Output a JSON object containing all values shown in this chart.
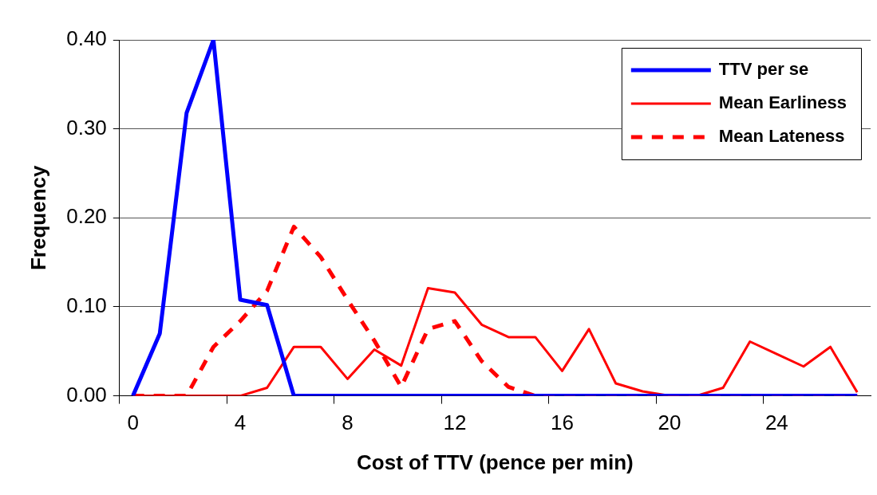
{
  "chart_data": {
    "type": "line",
    "xlabel": "Cost of TTV (pence per min)",
    "ylabel": "Frequency",
    "categories": [
      "0",
      null,
      null,
      null,
      "4",
      null,
      null,
      null,
      "8",
      null,
      null,
      null,
      "12",
      null,
      null,
      null,
      "16",
      null,
      null,
      null,
      "20",
      null,
      null,
      null,
      "24",
      null,
      null,
      null
    ],
    "ylim": [
      0,
      0.4
    ],
    "yticks": [
      {
        "value": 0,
        "label": "0.00"
      },
      {
        "value": 0.1,
        "label": "0.10"
      },
      {
        "value": 0.2,
        "label": "0.20"
      },
      {
        "value": 0.3,
        "label": "0.30"
      },
      {
        "value": 0.4,
        "label": "0.40"
      }
    ],
    "grid": "y",
    "legend": "top right",
    "marker": "none",
    "series": [
      {
        "name": "TTV per se",
        "color": "#0000ff",
        "line_style": "solid",
        "values": [
          0,
          0.07,
          0.318,
          0.4,
          0.108,
          0.102,
          0,
          0,
          0,
          0,
          0,
          0,
          0,
          0,
          0,
          0,
          0,
          0,
          0,
          0,
          0,
          0,
          0,
          0,
          0,
          0,
          0,
          0
        ]
      },
      {
        "name": "Mean Earliness",
        "color": "#ff0000",
        "line_style": "solid",
        "values": [
          0,
          0,
          0,
          0,
          0,
          0.009,
          0.055,
          0.055,
          0.019,
          0.052,
          0.034,
          0.121,
          0.116,
          0.08,
          0.066,
          0.066,
          0.028,
          0.075,
          0.014,
          0.005,
          0,
          0,
          0.009,
          0.061,
          0.047,
          0.033,
          0.055,
          0.004
        ]
      },
      {
        "name": "Mean Lateness",
        "color": "#ff0000",
        "line_style": "dashed",
        "values": [
          0,
          0,
          0,
          0.055,
          0.084,
          0.118,
          0.19,
          0.156,
          0.108,
          0.062,
          0.01,
          0.075,
          0.084,
          0.039,
          0.01,
          0,
          0,
          0,
          0,
          0,
          0,
          0,
          0,
          0,
          0,
          0,
          0,
          0
        ]
      }
    ]
  }
}
